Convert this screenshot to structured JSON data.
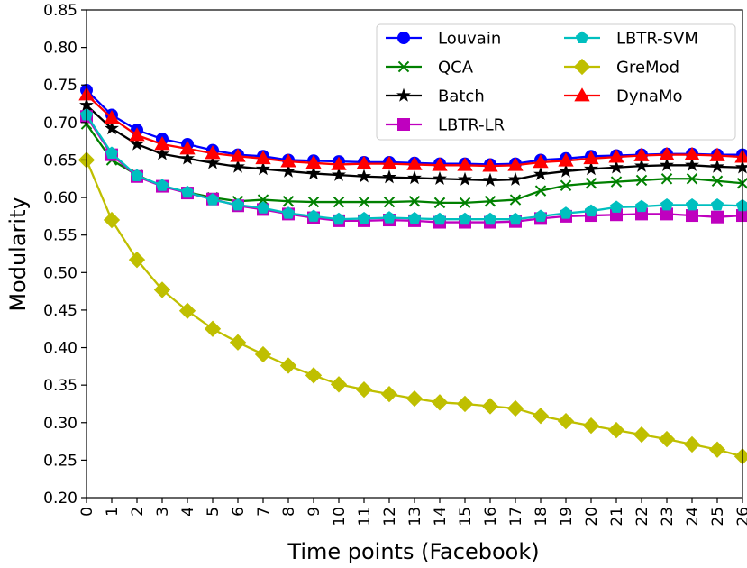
{
  "chart_data": {
    "type": "line",
    "title": "",
    "xlabel": "Time points (Facebook)",
    "ylabel": "Modularity",
    "x": [
      0,
      1,
      2,
      3,
      4,
      5,
      6,
      7,
      8,
      9,
      10,
      11,
      12,
      13,
      14,
      15,
      16,
      17,
      18,
      19,
      20,
      21,
      22,
      23,
      24,
      25,
      26
    ],
    "xlim": [
      0,
      26
    ],
    "ylim": [
      0.2,
      0.85
    ],
    "yticks": [
      0.2,
      0.25,
      0.3,
      0.35,
      0.4,
      0.45,
      0.5,
      0.55,
      0.6,
      0.65,
      0.7,
      0.75,
      0.8,
      0.85
    ],
    "ytick_labels": [
      "0.20",
      "0.25",
      "0.30",
      "0.35",
      "0.40",
      "0.45",
      "0.50",
      "0.55",
      "0.60",
      "0.65",
      "0.70",
      "0.75",
      "0.80",
      "0.85"
    ],
    "xtick_labels": [
      "0",
      "1",
      "2",
      "3",
      "4",
      "5",
      "6",
      "7",
      "8",
      "9",
      "10",
      "11",
      "12",
      "13",
      "14",
      "15",
      "16",
      "17",
      "18",
      "19",
      "20",
      "21",
      "22",
      "23",
      "24",
      "25",
      "26"
    ],
    "grid": false,
    "legend_position": "top-right",
    "legend_columns": 2,
    "series": [
      {
        "name": "Louvain",
        "color": "#0000ff",
        "marker": "circle",
        "values": [
          0.743,
          0.71,
          0.69,
          0.678,
          0.671,
          0.663,
          0.657,
          0.655,
          0.65,
          0.649,
          0.648,
          0.647,
          0.647,
          0.646,
          0.645,
          0.645,
          0.644,
          0.645,
          0.65,
          0.652,
          0.655,
          0.656,
          0.657,
          0.658,
          0.658,
          0.657,
          0.657
        ]
      },
      {
        "name": "QCA",
        "color": "#008000",
        "marker": "x",
        "values": [
          0.698,
          0.65,
          0.63,
          0.615,
          0.607,
          0.6,
          0.595,
          0.597,
          0.595,
          0.594,
          0.594,
          0.594,
          0.594,
          0.595,
          0.593,
          0.593,
          0.595,
          0.597,
          0.609,
          0.616,
          0.619,
          0.621,
          0.623,
          0.625,
          0.625,
          0.622,
          0.619
        ]
      },
      {
        "name": "Batch",
        "color": "#000000",
        "marker": "star",
        "values": [
          0.723,
          0.692,
          0.671,
          0.658,
          0.652,
          0.646,
          0.641,
          0.638,
          0.635,
          0.632,
          0.63,
          0.628,
          0.627,
          0.626,
          0.625,
          0.624,
          0.623,
          0.624,
          0.631,
          0.635,
          0.638,
          0.64,
          0.642,
          0.643,
          0.643,
          0.641,
          0.64
        ]
      },
      {
        "name": "LBTR-LR",
        "color": "#bf00bf",
        "marker": "square",
        "values": [
          0.708,
          0.657,
          0.628,
          0.615,
          0.606,
          0.598,
          0.589,
          0.584,
          0.578,
          0.573,
          0.569,
          0.569,
          0.57,
          0.569,
          0.567,
          0.567,
          0.567,
          0.568,
          0.572,
          0.575,
          0.576,
          0.577,
          0.578,
          0.578,
          0.576,
          0.574,
          0.576
        ]
      },
      {
        "name": "LBTR-SVM",
        "color": "#00bfbf",
        "marker": "pentagon",
        "values": [
          0.71,
          0.659,
          0.629,
          0.616,
          0.607,
          0.597,
          0.59,
          0.586,
          0.579,
          0.575,
          0.571,
          0.572,
          0.573,
          0.572,
          0.571,
          0.571,
          0.571,
          0.571,
          0.575,
          0.579,
          0.582,
          0.587,
          0.588,
          0.59,
          0.59,
          0.59,
          0.589
        ]
      },
      {
        "name": "GreMod",
        "color": "#bfbf00",
        "marker": "diamond",
        "values": [
          0.65,
          0.57,
          0.517,
          0.477,
          0.449,
          0.425,
          0.407,
          0.391,
          0.376,
          0.363,
          0.351,
          0.344,
          0.338,
          0.332,
          0.327,
          0.325,
          0.322,
          0.319,
          0.309,
          0.302,
          0.296,
          0.29,
          0.284,
          0.278,
          0.271,
          0.264,
          0.255
        ]
      },
      {
        "name": "DynaMo",
        "color": "#ff0000",
        "marker": "triangle",
        "values": [
          0.737,
          0.706,
          0.683,
          0.671,
          0.665,
          0.659,
          0.655,
          0.652,
          0.648,
          0.646,
          0.644,
          0.645,
          0.645,
          0.644,
          0.643,
          0.643,
          0.642,
          0.643,
          0.647,
          0.649,
          0.652,
          0.654,
          0.656,
          0.657,
          0.657,
          0.656,
          0.654
        ]
      }
    ]
  }
}
